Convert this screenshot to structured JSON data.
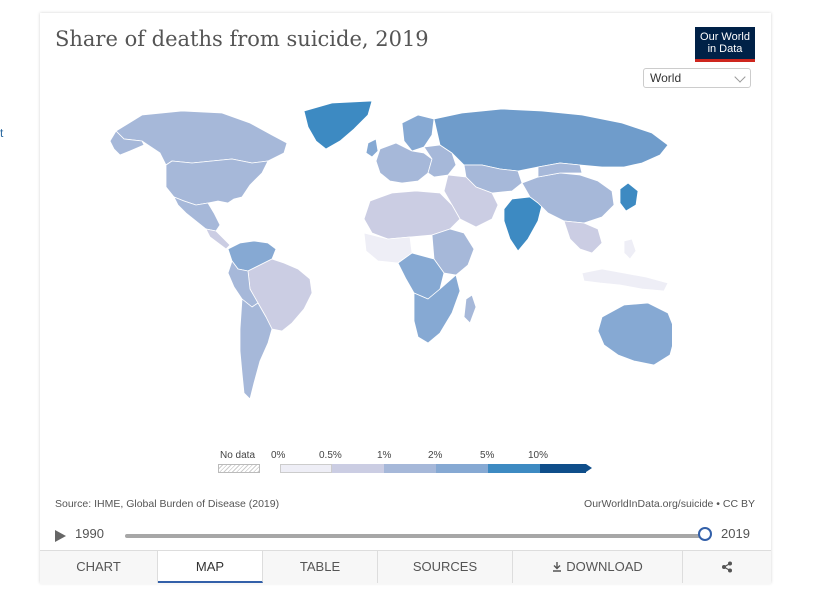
{
  "header": {
    "title": "Share of deaths from suicide, 2019",
    "logo_line1": "Our World",
    "logo_line2": "in Data",
    "region_select": "World"
  },
  "stub_text": "t",
  "legend": {
    "no_data_label": "No data",
    "bins": [
      {
        "label": "0%",
        "color": "#eeeef6"
      },
      {
        "label": "0.5%",
        "color": "#cbcde3"
      },
      {
        "label": "1%",
        "color": "#a6b8d9"
      },
      {
        "label": "2%",
        "color": "#86a9d3"
      },
      {
        "label": "5%",
        "color": "#3d8ac2"
      },
      {
        "label": "10%",
        "color": "#0f4e8a"
      }
    ]
  },
  "footer": {
    "source": "Source: IHME, Global Burden of Disease (2019)",
    "credit": "OurWorldInData.org/suicide • CC BY"
  },
  "timeline": {
    "start": "1990",
    "end": "2019",
    "current": "2019"
  },
  "tabs": [
    {
      "label": "CHART",
      "active": false
    },
    {
      "label": "MAP",
      "active": true
    },
    {
      "label": "TABLE",
      "active": false
    },
    {
      "label": "SOURCES",
      "active": false
    },
    {
      "label": "DOWNLOAD",
      "active": false
    }
  ],
  "icons": {
    "share": "share-icon",
    "download": "download-icon",
    "play": "play-icon"
  }
}
